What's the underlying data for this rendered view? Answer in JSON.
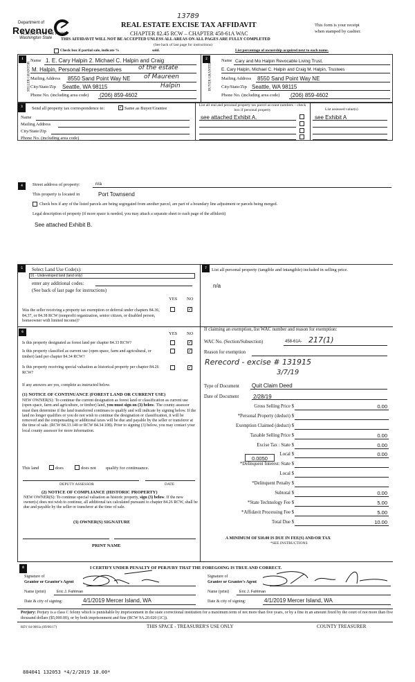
{
  "header": {
    "logo_line1": "Department of",
    "logo_line2": "Revenue",
    "logo_line3": "Washington State",
    "hand_number": "13789",
    "title": "REAL ESTATE EXCISE TAX AFFIDAVIT",
    "chapter": "CHAPTER 82.45 RCW – CHAPTER 458-61A WAC",
    "warning": "THIS AFFIDAVIT WILL NOT BE ACCEPTED UNLESS ALL AREAS ON ALL PAGES ARE FULLY COMPLETED",
    "see_back": "(See back of last page for instructions)",
    "please": "PLEASE TYPE OR PRINT",
    "receipt1": "This form is your receipt",
    "receipt2": "when stamped by cashier.",
    "partial_label": "Check box if partial sale, indicate %",
    "sold": "sold.",
    "ownership": "List percentage of ownership acquired next to each name."
  },
  "seller": {
    "num": "1",
    "side": "SELLER GRANTOR",
    "name_label": "Name",
    "name1": "1. E. Cary Halpin 2. Michael C. Halpin and Craig",
    "name2": "M. Halpin, Personal Representatives",
    "hand1": "of the estate",
    "address_label": "Mailing Address",
    "address": "8550 Sand Point Way NE",
    "hand2": "of Maureen",
    "city_label": "City/State/Zip",
    "city": "Seattle, WA 98115",
    "hand3": "Halpin",
    "phone_label": "Phone No. (including area code)",
    "phone": "(206) 859-4602"
  },
  "buyer": {
    "num": "2",
    "side": "BUYER GRANTEE",
    "name_label": "Name",
    "name1": "Cary and Mo Halpin Revocable Living Trust,",
    "name2": "E. Cary Halpin, Michael C. Halpin and Craig M. Halpin, Trustees",
    "address_label": "Mailing Address",
    "address": "8550 Sand Point Way NE",
    "city_label": "City/State/Zip",
    "city": "Seattle, WA 98115",
    "phone_label": "Phone No. (including area code)",
    "phone": "(206) 859-4602"
  },
  "section3": {
    "num": "3",
    "send_label": "Send all property tax correspondence to:",
    "same_label": "Same as Buyer/Grantee",
    "same_checked": true,
    "name_label": "Name",
    "address_label": "Mailing Address",
    "city_label": "City/State/Zip",
    "phone_label": "Phone No. (including area code)",
    "parcel_header": "List all real and personal property tax parcel account numbers – check box if personal property",
    "assessed_header": "List assessed value(s)",
    "parcel1": "see attached Exhibit A.",
    "assessed1": "see Exhibit A"
  },
  "section4": {
    "num": "4",
    "street_label": "Street address of property:",
    "street": "n/a",
    "located_label": "This property is located in",
    "located": "Port Townsend",
    "segregated_label": "Check box if any of the listed parcels are being segregated from another parcel, are part of a boundary line adjustment or parcels being merged.",
    "legal_label": "Legal description of property (if more space is needed, you may attach a separate sheet to each page of the affidavit)",
    "legal": "See attached Exhibit B."
  },
  "section5": {
    "num": "5",
    "select_label": "Select Land Use Code(s):",
    "code": "91 - Undeveloped land (land only)",
    "additional_label": "enter any additional codes:",
    "see_back": "(See back of last page for instructions)",
    "yes": "YES",
    "no": "NO",
    "exemption_q": "Was the seller receiving a property tax exemption or deferral under chapters 84.36, 84.37, or 84.38 RCW (nonprofit organization, senior citizen, or disabled person, homeowner with limited income)?",
    "exemption_answer": "NO"
  },
  "section6": {
    "num": "6",
    "yes": "YES",
    "no": "NO",
    "q1": "Is this property designated as forest land per chapter 84.33 RCW?",
    "q2": "Is this property classified as current use (open space, farm and agricultural, or timber) land per chapter 84.34 RCW?",
    "q3": "Is this property receiving special valuation as historical property per chapter 84.26 RCW?",
    "answers": [
      "NO",
      "NO",
      "NO"
    ],
    "if_yes": "If any answers are yes, complete as instructed below.",
    "n1_title": "(1) NOTICE OF CONTINUANCE (FOREST LAND OR CURRENT USE)",
    "n1_a": "NEW OWNER(S): To continue the current designation as forest land or classification as current use (open space, farm and agriculture, or timber) land,",
    "n1_bold": "you must sign on (3) below",
    "n1_b": ". The county assessor must then determine if the land transferred continues to qualify and will indicate by signing below. If the land no longer qualifies or you do not wish to continue the designation or classification, it will be removed and the compensating or additional taxes will be due and payable by the seller or transferor at the time of sale. (RCW 84.33.140 or RCW 84.34.108). Prior to signing (3) below, you may contact your local county assessor for more information.",
    "this_land": "This land",
    "does": "does",
    "does_not": "does not",
    "qualify": "qualify for continuance.",
    "deputy": "DEPUTY ASSESSOR",
    "date": "DATE",
    "n2_title": "(2) NOTICE OF COMPLIANCE (HISTORIC PROPERTY)",
    "n2_a": "NEW OWNER(S): To continue special valuation as historic property,",
    "n2_bold": "sign (3) below",
    "n2_b": ". If the new owner(s) does not wish to continue, all additional tax calculated pursuant to chapter 84.26 RCW, shall be due and payable by the seller or transferor at the time of sale.",
    "n3_title": "(3) OWNER(S) SIGNATURE",
    "print_name": "PRINT NAME"
  },
  "section7": {
    "num": "7",
    "label": "List all personal property (tangible and intangible) included in selling price.",
    "value": "n/a"
  },
  "exemption": {
    "header": "If claiming an exemption, list WAC number and reason for exemption:",
    "wac_label": "WAC No. (Section/Subsection)",
    "wac": "458-61A-",
    "wac_hand": "217(1)",
    "reason_label": "Reason for exemption",
    "reason_hand1": "Rerecord - excise # 131915",
    "reason_hand2": "3/7/19",
    "doc_type_label": "Type of Document",
    "doc_type": "Quit Claim Deed",
    "doc_date_label": "Date of Document",
    "doc_date": "2/28/19"
  },
  "fees": {
    "rate": "0.0050",
    "rows": [
      {
        "label": "Gross Selling Price $",
        "value": "0.00"
      },
      {
        "label": "*Personal Property (deduct) $",
        "value": ""
      },
      {
        "label": "Exemption Claimed (deduct) $",
        "value": ""
      },
      {
        "label": "Taxable Selling Price $",
        "value": "0.00"
      },
      {
        "label": "Excise Tax : State $",
        "value": "0.00"
      },
      {
        "label": "Local $",
        "value": "0.00"
      },
      {
        "label": "*Delinquent Interest: State $",
        "value": ""
      },
      {
        "label": "Local $",
        "value": ""
      },
      {
        "label": "*Delinquent Penalty $",
        "value": ""
      },
      {
        "label": "Subtotal $",
        "value": "0.00"
      },
      {
        "label": "*State Technology Fee $",
        "value": "5.00"
      },
      {
        "label": "*Affidavit Processing Fee $",
        "value": "5.00"
      },
      {
        "label": "Total Due $",
        "value": "10.00"
      }
    ],
    "minimum": "A MINIMUM OF $10.00 IS DUE IN FEE(S) AND/OR TAX",
    "see_instr": "*SEE INSTRUCTIONS"
  },
  "section8": {
    "num": "8",
    "certify": "I CERTIFY UNDER PENALTY OF PERJURY THAT THE FOREGOING IS TRUE AND CORRECT.",
    "sig_of": "Signature of",
    "grantor_agent": "Grantor or Grantor's Agent",
    "grantee_agent": "Grantee or Grantee's Agent",
    "name_print": "Name (print)",
    "grantor_name": "Eric J. Fahlman",
    "grantee_name": "Eric J. Fahlman",
    "date_label": "Date & city of signing:",
    "grantor_date": "4/1/2019 Mercer Island, WA",
    "grantee_date": "4/1/2019  Mercer Island, WA"
  },
  "footer": {
    "perjury_bold": "Perjury:",
    "perjury": " Perjury is a class C felony which is punishable by imprisonment in the state correctional institution for a maximum term of not more than five years, or by a fine in an amount fixed by the court of not more than five thousand dollars ($5,000.00), or by both imprisonment and fine (RCW 9A.20.020 (1C)).",
    "rev": "REV 84 0001a (09/06/17)",
    "treasurer_space": "THIS SPACE - TREASURER'S USE ONLY",
    "county": "COUNTY TREASURER",
    "stamp": "884041 132053 *4/2/2019 10.00*"
  }
}
